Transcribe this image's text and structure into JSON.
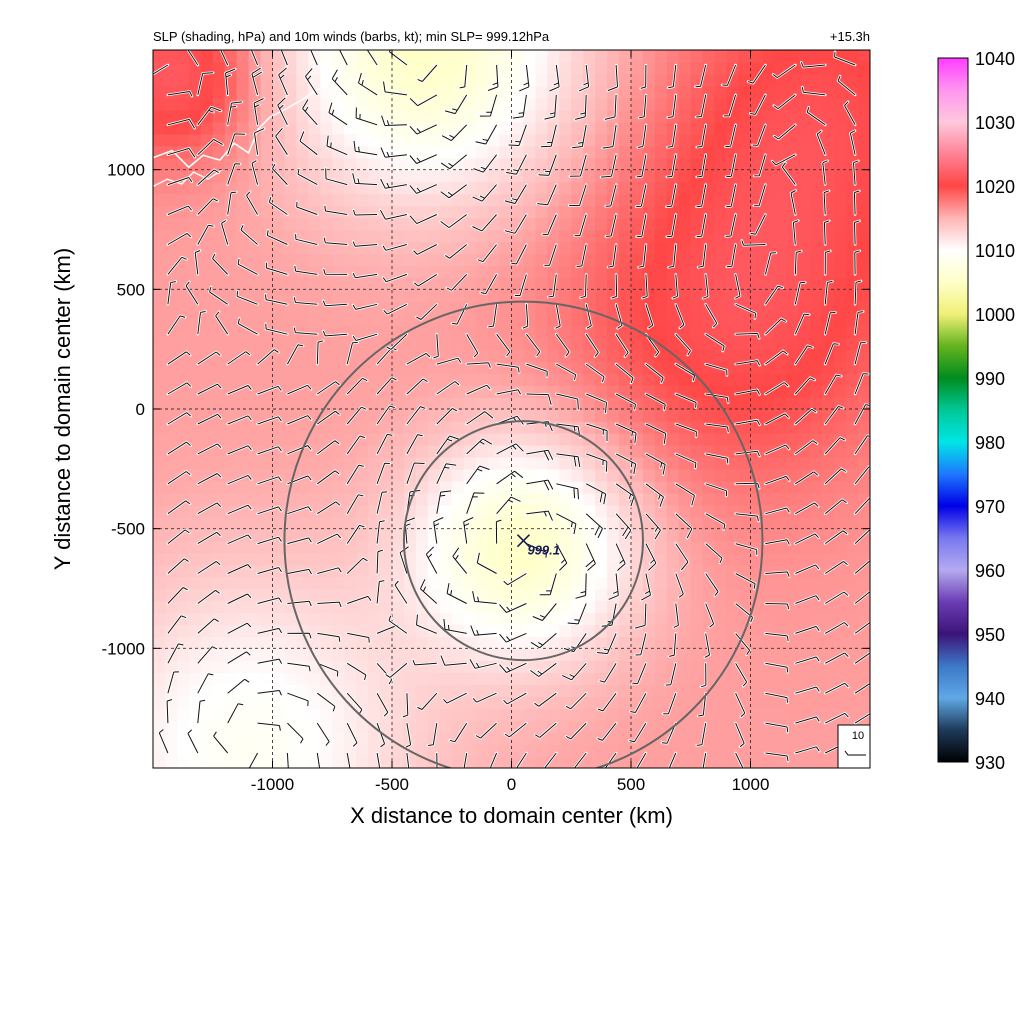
{
  "chart_data": {
    "type": "heatmap",
    "title": "SLP (shading, hPa) and 10m winds (barbs, kt); min SLP= 999.12hPa",
    "forecast_time": "+15.3h",
    "xlabel": "X distance to domain center (km)",
    "ylabel": "Y distance to domain center (km)",
    "xlim": [
      -1500,
      1500
    ],
    "ylim": [
      -1500,
      1500
    ],
    "x_ticks": [
      -1000,
      -500,
      0,
      500,
      1000
    ],
    "y_ticks": [
      -1000,
      -500,
      0,
      500,
      1000
    ],
    "x_tick_labels": [
      "-1000",
      "-500",
      "0",
      "500",
      "1000"
    ],
    "y_tick_labels": [
      "-1000",
      "-500",
      "0",
      "500",
      "1000"
    ],
    "grid": true,
    "grid_spacing_km": 500,
    "colorbar": {
      "label_values": [
        930,
        940,
        950,
        960,
        970,
        980,
        990,
        1000,
        1010,
        1020,
        1030,
        1040
      ],
      "labels": [
        "930",
        "940",
        "950",
        "960",
        "970",
        "980",
        "990",
        "1000",
        "1010",
        "1020",
        "1030",
        "1040"
      ],
      "range": [
        930,
        1040
      ],
      "stops": [
        {
          "value": 930,
          "color": "#000000"
        },
        {
          "value": 935,
          "color": "#1e3a5a"
        },
        {
          "value": 940,
          "color": "#5fa8e6"
        },
        {
          "value": 945,
          "color": "#3c78c8"
        },
        {
          "value": 950,
          "color": "#3c1478"
        },
        {
          "value": 955,
          "color": "#6a3cb4"
        },
        {
          "value": 960,
          "color": "#b4aaf0"
        },
        {
          "value": 965,
          "color": "#7878f0"
        },
        {
          "value": 970,
          "color": "#0000e6"
        },
        {
          "value": 975,
          "color": "#1e78ff"
        },
        {
          "value": 980,
          "color": "#00e6e6"
        },
        {
          "value": 985,
          "color": "#00c896"
        },
        {
          "value": 990,
          "color": "#008c1e"
        },
        {
          "value": 995,
          "color": "#64b41e"
        },
        {
          "value": 1000,
          "color": "#f0f078"
        },
        {
          "value": 1005,
          "color": "#ffffc8"
        },
        {
          "value": 1010,
          "color": "#ffffff"
        },
        {
          "value": 1015,
          "color": "#ffb4b4"
        },
        {
          "value": 1020,
          "color": "#ff4646"
        },
        {
          "value": 1025,
          "color": "#ff8296"
        },
        {
          "value": 1030,
          "color": "#ffc8dc"
        },
        {
          "value": 1035,
          "color": "#ff96f0"
        },
        {
          "value": 1040,
          "color": "#ff3cff"
        }
      ]
    },
    "min_slp": {
      "x": 50,
      "y": -550,
      "value": 999.12,
      "label": "999.1",
      "marker": "x"
    },
    "range_rings": [
      {
        "center_x": 50,
        "center_y": -550,
        "radius_km": 500
      },
      {
        "center_x": 50,
        "center_y": -550,
        "radius_km": 1000
      }
    ],
    "pressure_field": {
      "background_hpa": 1016,
      "features": [
        {
          "type": "low",
          "x": 50,
          "y": -580,
          "delta_hpa": -11,
          "scale_km": 320
        },
        {
          "type": "low",
          "x": -350,
          "y": 1500,
          "delta_hpa": -11,
          "scale_km": 420
        },
        {
          "type": "low",
          "x": -1100,
          "y": -1400,
          "delta_hpa": -7,
          "scale_km": 500
        },
        {
          "type": "high",
          "x": 950,
          "y": 400,
          "delta_hpa": 5,
          "scale_km": 520
        },
        {
          "type": "high",
          "x": 1300,
          "y": 1300,
          "delta_hpa": 4,
          "scale_km": 450
        },
        {
          "type": "high",
          "x": -1400,
          "y": 1400,
          "delta_hpa": 6,
          "scale_km": 260
        }
      ]
    },
    "wind_barbs": {
      "spacing_km": 125,
      "units": "kt"
    },
    "reference_barb": {
      "label": "10",
      "value_kt": 10
    },
    "coastline": "white"
  }
}
